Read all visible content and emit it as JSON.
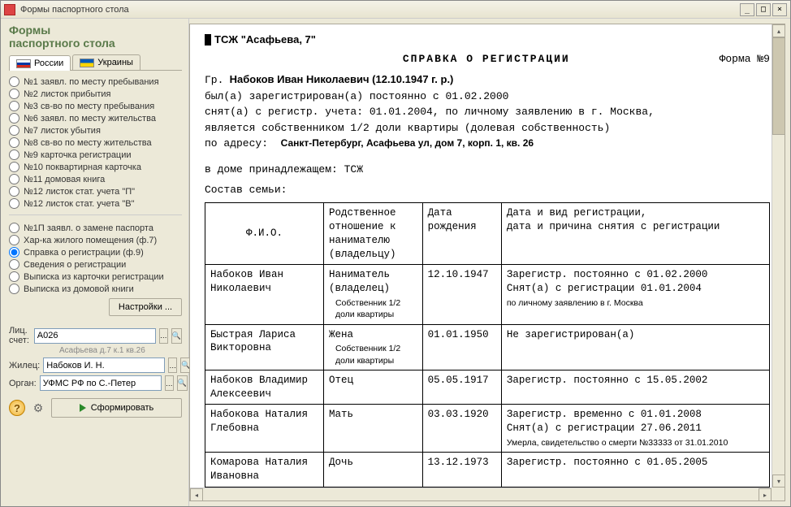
{
  "window": {
    "title": "Формы паспортного стола"
  },
  "sidebar": {
    "heading": "Формы\nпаспортного стола",
    "tabs": {
      "ru": "России",
      "ua": "Украины"
    },
    "forms1": [
      "№1  заявл. по месту пребывания",
      "№2  листок прибытия",
      "№3  св-во по месту пребывания",
      "№6  заявл. по месту жительства",
      "№7  листок убытия",
      "№8  св-во по месту жительства",
      "№9  карточка регистрации",
      "№10 поквартирная карточка",
      "№11 домовая книга",
      "№12 листок стат. учета \"П\"",
      "№12 листок стат. учета \"В\""
    ],
    "forms2": [
      "№1П  заявл. о замене паспорта",
      "Хар-ка жилого помещения (ф.7)",
      "Справка о регистрации (ф.9)",
      "Сведения о регистрации",
      "Выписка из карточки регистрации",
      "Выписка из домовой книги"
    ],
    "selected_form2_index": 2,
    "settings_btn": "Настройки ...",
    "fields": {
      "acct_label": "Лиц. счет:",
      "acct_value": "А026",
      "acct_sub": "Асафьева д.7 к.1 кв.26",
      "person_label": "Жилец:",
      "person_value": "Набоков И. Н.",
      "org_label": "Орган:",
      "org_value": "УФМС РФ по С.-Петер"
    },
    "form_btn": "Сформировать"
  },
  "doc": {
    "org": "ТСЖ \"Асафьева, 7\"",
    "title": "СПРАВКА О РЕГИСТРАЦИИ",
    "form_no": "Форма №9",
    "gr_prefix": "Гр.",
    "person": "Набоков Иван Николаевич (12.10.1947 г. р.)",
    "line1": "был(а) зарегистрирован(а) постоянно с 01.02.2000",
    "line2": "снят(а) с регистр. учета: 01.01.2004, по личному заявлению в г. Москва,",
    "line3": "является собственником 1/2 доли квартиры (долевая собственность)",
    "addr_prefix": "по адресу:",
    "addr": "Санкт-Петербург, Асафьева ул, дом 7, корп. 1, кв. 26",
    "house_line": "в доме принадлежащем:  ТСЖ",
    "family_head": "Состав семьи:",
    "table": {
      "headers": {
        "fio": "Ф.И.О.",
        "rel": "Родственное отношение к нанимателю (владельцу)",
        "dob": "Дата рождения",
        "reg": "Дата и вид регистрации,\nдата и причина снятия с регистрации"
      },
      "rows": [
        {
          "fio": "Набоков Иван Николаевич",
          "rel": "Наниматель (владелец)",
          "rel_note": "Собственник 1/2 доли квартиры",
          "dob": "12.10.1947",
          "reg": "Зарегистр. постоянно с 01.02.2000\nСнят(а) с регистрации  01.01.2004",
          "reg_note": "по личному заявлению в г. Москва"
        },
        {
          "fio": "Быстрая Лариса Викторовна",
          "rel": "Жена",
          "rel_note": "Собственник 1/2 доли квартиры",
          "dob": "01.01.1950",
          "reg": "Не зарегистрирован(а)",
          "reg_note": ""
        },
        {
          "fio": "Набоков Владимир Алексеевич",
          "rel": "Отец",
          "rel_note": "",
          "dob": "05.05.1917",
          "reg": "Зарегистр. постоянно с 15.05.2002",
          "reg_note": ""
        },
        {
          "fio": "Набокова Наталия Глебовна",
          "rel": "Мать",
          "rel_note": "",
          "dob": "03.03.1920",
          "reg": "Зарегистр. временно с 01.01.2008\nСнят(а) с регистрации  27.06.2011",
          "reg_note": "Умерла, свидетельство о смерти №33333 от 31.01.2010"
        },
        {
          "fio": "Комарова Наталия Ивановна",
          "rel": "Дочь",
          "rel_note": "",
          "dob": "13.12.1973",
          "reg": "Зарегистр. постоянно с 01.05.2005",
          "reg_note": ""
        }
      ]
    }
  }
}
